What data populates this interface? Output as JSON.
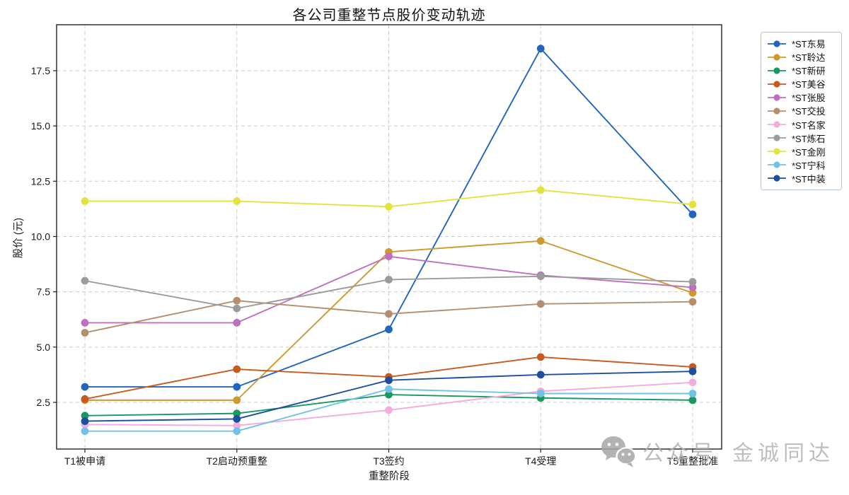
{
  "chart_data": {
    "type": "line",
    "title": "各公司重整节点股价变动轨迹",
    "xlabel": "重整阶段",
    "ylabel": "股价 (元)",
    "categories": [
      "T1被申请",
      "T2启动预重整",
      "T3签约",
      "T4受理",
      "T5重整批准"
    ],
    "yticks": [
      2.5,
      5.0,
      7.5,
      10.0,
      12.5,
      15.0,
      17.5
    ],
    "ytick_labels": [
      "2.5",
      "5.0",
      "7.5",
      "10.0",
      "12.5",
      "15.0",
      "17.5"
    ],
    "ylim": [
      0.4,
      19.6
    ],
    "grid": true,
    "legend_position": "outside-right",
    "marker": "circle",
    "series": [
      {
        "name": "*ST东易",
        "color": "#2065bf",
        "values": [
          3.2,
          3.2,
          5.8,
          18.5,
          11.0
        ]
      },
      {
        "name": "*ST聆达",
        "color": "#cd9a2b",
        "values": [
          2.6,
          2.6,
          9.3,
          9.8,
          7.45
        ]
      },
      {
        "name": "*ST新研",
        "color": "#18995f",
        "values": [
          1.9,
          2.0,
          2.85,
          2.7,
          2.6
        ]
      },
      {
        "name": "*ST美谷",
        "color": "#c75a1e",
        "values": [
          2.65,
          4.0,
          3.65,
          4.55,
          4.1
        ]
      },
      {
        "name": "*ST张股",
        "color": "#c06fc0",
        "values": [
          6.1,
          6.1,
          9.1,
          8.25,
          7.7
        ]
      },
      {
        "name": "*ST交投",
        "color": "#b58e6e",
        "values": [
          5.65,
          7.1,
          6.5,
          6.95,
          7.05
        ]
      },
      {
        "name": "*ST名家",
        "color": "#f1aedb",
        "values": [
          1.5,
          1.45,
          2.15,
          3.0,
          3.4
        ]
      },
      {
        "name": "*ST炼石",
        "color": "#9b9b9b",
        "values": [
          8.0,
          6.75,
          8.05,
          8.2,
          7.95
        ]
      },
      {
        "name": "*ST金刚",
        "color": "#e4e33e",
        "values": [
          11.6,
          11.6,
          11.35,
          12.1,
          11.45
        ]
      },
      {
        "name": "*ST宁科",
        "color": "#72c1e7",
        "values": [
          1.2,
          1.2,
          3.1,
          2.9,
          2.9
        ]
      },
      {
        "name": "*ST中装",
        "color": "#1d4f9e",
        "values": [
          1.65,
          1.75,
          3.5,
          3.75,
          3.9
        ]
      }
    ]
  },
  "watermark": {
    "icon": "wechat-icon",
    "label": "公众号",
    "brand": "金诚同达"
  }
}
